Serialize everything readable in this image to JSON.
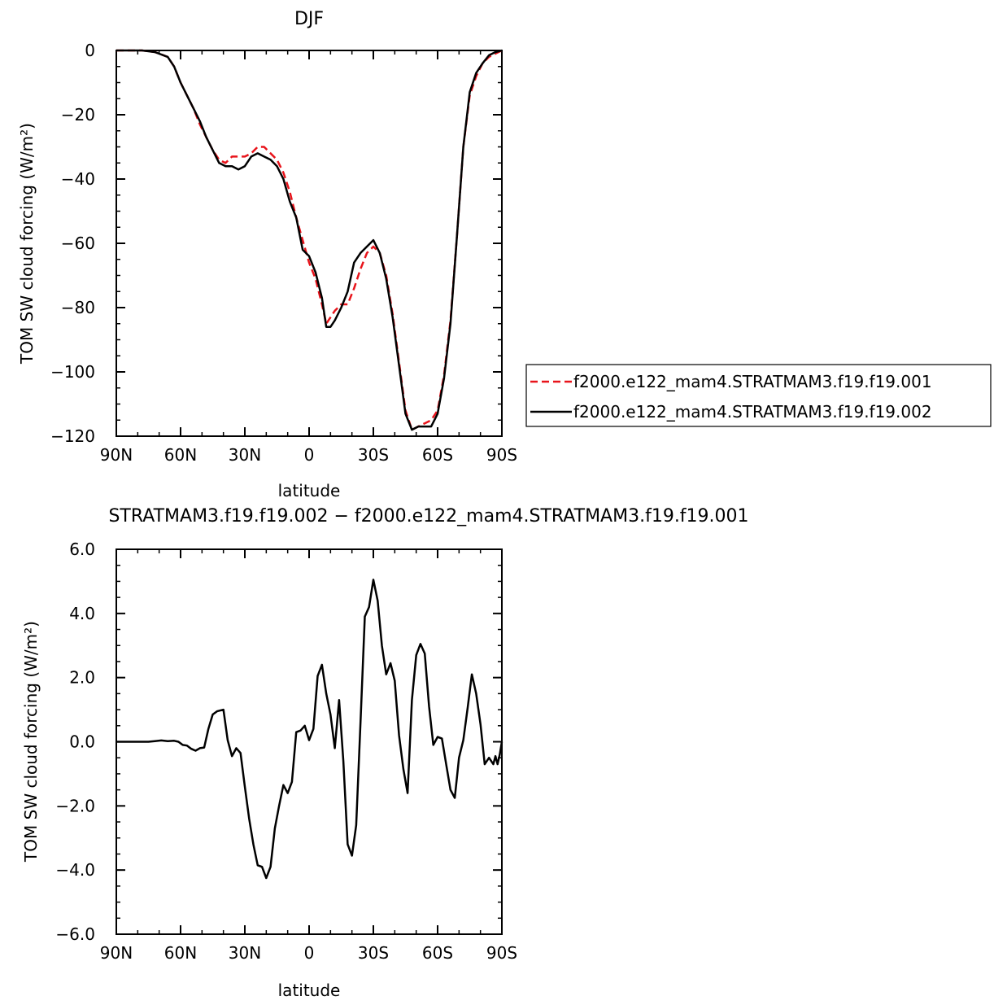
{
  "chart_data": [
    {
      "type": "line",
      "title": "DJF",
      "xlabel": "latitude",
      "ylabel": "TOM SW cloud forcing (W/m²)",
      "xlim": [
        90,
        -90
      ],
      "ylim": [
        -120,
        0
      ],
      "x_ticks": [
        {
          "value": 90,
          "label": "90N"
        },
        {
          "value": 60,
          "label": "60N"
        },
        {
          "value": 30,
          "label": "30N"
        },
        {
          "value": 0,
          "label": "0"
        },
        {
          "value": -30,
          "label": "30S"
        },
        {
          "value": -60,
          "label": "60S"
        },
        {
          "value": -90,
          "label": "90S"
        }
      ],
      "y_ticks": [
        {
          "value": 0,
          "label": "0"
        },
        {
          "value": -20,
          "label": "−20"
        },
        {
          "value": -40,
          "label": "−40"
        },
        {
          "value": -60,
          "label": "−60"
        },
        {
          "value": -80,
          "label": "−80"
        },
        {
          "value": -100,
          "label": "−100"
        },
        {
          "value": -120,
          "label": "−120"
        }
      ],
      "grid": false,
      "legend_position": "right",
      "series": [
        {
          "name": "f2000.e122_mam4.STRATMAM3.f19.f19.001",
          "color": "#e8141b",
          "dash": "dashed",
          "points": [
            [
              90,
              0
            ],
            [
              84,
              0
            ],
            [
              78,
              0
            ],
            [
              72,
              -0.5
            ],
            [
              66,
              -2
            ],
            [
              63,
              -5
            ],
            [
              60,
              -10
            ],
            [
              57,
              -14
            ],
            [
              54,
              -18
            ],
            [
              51,
              -23
            ],
            [
              48,
              -27
            ],
            [
              45,
              -31
            ],
            [
              42,
              -34
            ],
            [
              39,
              -35
            ],
            [
              36,
              -33
            ],
            [
              33,
              -33
            ],
            [
              30,
              -33
            ],
            [
              27,
              -32
            ],
            [
              24,
              -30
            ],
            [
              21,
              -30
            ],
            [
              18,
              -32
            ],
            [
              15,
              -34
            ],
            [
              12,
              -38
            ],
            [
              9,
              -44
            ],
            [
              6,
              -52
            ],
            [
              3,
              -59
            ],
            [
              0,
              -66
            ],
            [
              -3,
              -71
            ],
            [
              -6,
              -79
            ],
            [
              -8,
              -85
            ],
            [
              -10,
              -83
            ],
            [
              -12,
              -81
            ],
            [
              -15,
              -79
            ],
            [
              -18,
              -79
            ],
            [
              -21,
              -74
            ],
            [
              -24,
              -68
            ],
            [
              -27,
              -63
            ],
            [
              -30,
              -61
            ],
            [
              -33,
              -63
            ],
            [
              -36,
              -70
            ],
            [
              -39,
              -82
            ],
            [
              -42,
              -97
            ],
            [
              -45,
              -112
            ],
            [
              -48,
              -118
            ],
            [
              -51,
              -117
            ],
            [
              -54,
              -116
            ],
            [
              -57,
              -115
            ],
            [
              -60,
              -112
            ],
            [
              -63,
              -101
            ],
            [
              -66,
              -84
            ],
            [
              -69,
              -58
            ],
            [
              -72,
              -30
            ],
            [
              -75,
              -14
            ],
            [
              -78,
              -8
            ],
            [
              -81,
              -4
            ],
            [
              -84,
              -2
            ],
            [
              -87,
              -1
            ],
            [
              -90,
              0
            ]
          ]
        },
        {
          "name": "f2000.e122_mam4.STRATMAM3.f19.f19.002",
          "color": "#000000",
          "dash": "solid",
          "points": [
            [
              90,
              0
            ],
            [
              84,
              0
            ],
            [
              78,
              0
            ],
            [
              72,
              -0.5
            ],
            [
              66,
              -2
            ],
            [
              63,
              -5
            ],
            [
              60,
              -10
            ],
            [
              57,
              -14
            ],
            [
              54,
              -18
            ],
            [
              51,
              -22
            ],
            [
              48,
              -27
            ],
            [
              45,
              -31
            ],
            [
              42,
              -35
            ],
            [
              39,
              -36
            ],
            [
              36,
              -36
            ],
            [
              33,
              -37
            ],
            [
              30,
              -36
            ],
            [
              27,
              -33
            ],
            [
              24,
              -32
            ],
            [
              21,
              -33
            ],
            [
              18,
              -34
            ],
            [
              15,
              -36
            ],
            [
              12,
              -40
            ],
            [
              9,
              -47
            ],
            [
              6,
              -52
            ],
            [
              3,
              -62
            ],
            [
              0,
              -64
            ],
            [
              -3,
              -69
            ],
            [
              -6,
              -77
            ],
            [
              -8,
              -86
            ],
            [
              -10,
              -86
            ],
            [
              -12,
              -84
            ],
            [
              -15,
              -80
            ],
            [
              -18,
              -75
            ],
            [
              -21,
              -66
            ],
            [
              -24,
              -63
            ],
            [
              -27,
              -61
            ],
            [
              -30,
              -59
            ],
            [
              -33,
              -63
            ],
            [
              -36,
              -71
            ],
            [
              -39,
              -83
            ],
            [
              -42,
              -98
            ],
            [
              -45,
              -113
            ],
            [
              -48,
              -118
            ],
            [
              -51,
              -117
            ],
            [
              -54,
              -117
            ],
            [
              -57,
              -117
            ],
            [
              -60,
              -113
            ],
            [
              -63,
              -102
            ],
            [
              -66,
              -85
            ],
            [
              -69,
              -58
            ],
            [
              -72,
              -30
            ],
            [
              -75,
              -13
            ],
            [
              -78,
              -7
            ],
            [
              -81,
              -4
            ],
            [
              -84,
              -1.5
            ],
            [
              -87,
              -0.5
            ],
            [
              -90,
              0
            ]
          ]
        }
      ]
    },
    {
      "type": "line",
      "title": "STRATMAM3.f19.f19.002 − f2000.e122_mam4.STRATMAM3.f19.f19.001",
      "xlabel": "latitude",
      "ylabel": "TOM SW cloud forcing (W/m²)",
      "xlim": [
        90,
        -90
      ],
      "ylim": [
        -6,
        6
      ],
      "x_ticks": [
        {
          "value": 90,
          "label": "90N"
        },
        {
          "value": 60,
          "label": "60N"
        },
        {
          "value": 30,
          "label": "30N"
        },
        {
          "value": 0,
          "label": "0"
        },
        {
          "value": -30,
          "label": "30S"
        },
        {
          "value": -60,
          "label": "60S"
        },
        {
          "value": -90,
          "label": "90S"
        }
      ],
      "y_ticks": [
        {
          "value": 6,
          "label": "6.0"
        },
        {
          "value": 4,
          "label": "4.0"
        },
        {
          "value": 2,
          "label": "2.0"
        },
        {
          "value": 0,
          "label": "0.0"
        },
        {
          "value": -2,
          "label": "−2.0"
        },
        {
          "value": -4,
          "label": "−4.0"
        },
        {
          "value": -6,
          "label": "−6.0"
        }
      ],
      "grid": false,
      "series": [
        {
          "color": "#000000",
          "dash": "solid",
          "points": [
            [
              90,
              0
            ],
            [
              87,
              0
            ],
            [
              84,
              0
            ],
            [
              81,
              0
            ],
            [
              78,
              0
            ],
            [
              75,
              0
            ],
            [
              72,
              0.02
            ],
            [
              69,
              0.04
            ],
            [
              66,
              0.02
            ],
            [
              63,
              0.03
            ],
            [
              61,
              0
            ],
            [
              59,
              -0.1
            ],
            [
              57,
              -0.12
            ],
            [
              55,
              -0.22
            ],
            [
              53,
              -0.28
            ],
            [
              51,
              -0.2
            ],
            [
              49,
              -0.18
            ],
            [
              47,
              0.4
            ],
            [
              45,
              0.85
            ],
            [
              43,
              0.95
            ],
            [
              40,
              1.0
            ],
            [
              38,
              0.05
            ],
            [
              36,
              -0.45
            ],
            [
              34,
              -0.2
            ],
            [
              32,
              -0.35
            ],
            [
              30,
              -1.4
            ],
            [
              28,
              -2.4
            ],
            [
              26,
              -3.2
            ],
            [
              24,
              -3.85
            ],
            [
              22,
              -3.9
            ],
            [
              20,
              -4.25
            ],
            [
              18,
              -3.9
            ],
            [
              16,
              -2.7
            ],
            [
              14,
              -2.0
            ],
            [
              12,
              -1.35
            ],
            [
              10,
              -1.6
            ],
            [
              8,
              -1.25
            ],
            [
              6,
              0.3
            ],
            [
              4,
              0.35
            ],
            [
              2,
              0.5
            ],
            [
              0,
              0.05
            ],
            [
              -2,
              0.4
            ],
            [
              -4,
              2.05
            ],
            [
              -6,
              2.4
            ],
            [
              -8,
              1.5
            ],
            [
              -10,
              0.85
            ],
            [
              -12,
              -0.2
            ],
            [
              -14,
              1.3
            ],
            [
              -16,
              -0.6
            ],
            [
              -18,
              -3.2
            ],
            [
              -20,
              -3.55
            ],
            [
              -22,
              -2.6
            ],
            [
              -24,
              0.6
            ],
            [
              -26,
              3.9
            ],
            [
              -28,
              4.2
            ],
            [
              -30,
              5.05
            ],
            [
              -32,
              4.4
            ],
            [
              -34,
              3.0
            ],
            [
              -36,
              2.1
            ],
            [
              -38,
              2.45
            ],
            [
              -40,
              1.9
            ],
            [
              -42,
              0.2
            ],
            [
              -44,
              -0.85
            ],
            [
              -46,
              -1.6
            ],
            [
              -48,
              1.3
            ],
            [
              -50,
              2.7
            ],
            [
              -52,
              3.05
            ],
            [
              -54,
              2.75
            ],
            [
              -56,
              1.1
            ],
            [
              -58,
              -0.1
            ],
            [
              -60,
              0.15
            ],
            [
              -62,
              0.1
            ],
            [
              -64,
              -0.7
            ],
            [
              -66,
              -1.5
            ],
            [
              -68,
              -1.75
            ],
            [
              -70,
              -0.5
            ],
            [
              -72,
              0.05
            ],
            [
              -74,
              1.05
            ],
            [
              -76,
              2.1
            ],
            [
              -78,
              1.5
            ],
            [
              -80,
              0.55
            ],
            [
              -82,
              -0.7
            ],
            [
              -84,
              -0.5
            ],
            [
              -86,
              -0.7
            ],
            [
              -87,
              -0.45
            ],
            [
              -88,
              -0.7
            ],
            [
              -89,
              -0.4
            ],
            [
              -90,
              0
            ]
          ]
        }
      ]
    }
  ]
}
